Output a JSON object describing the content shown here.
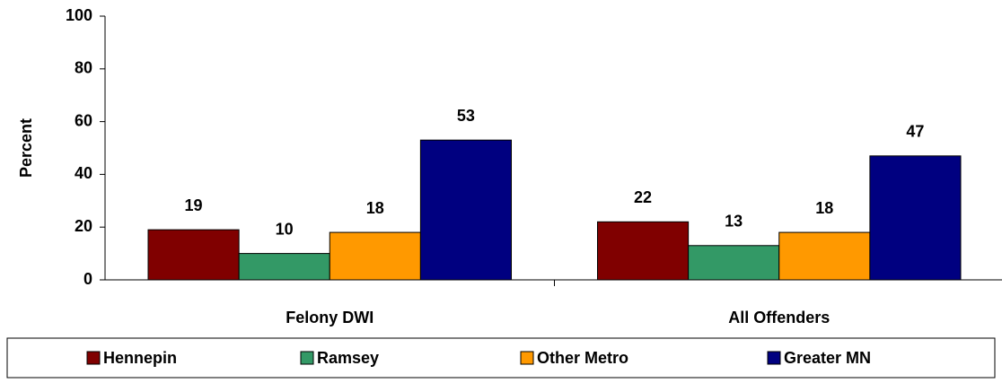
{
  "chart_data": {
    "type": "bar",
    "y_label": "Percent",
    "categories": [
      "Felony DWI",
      "All Offenders"
    ],
    "series": [
      {
        "name": "Hennepin",
        "color": "#800000",
        "values": [
          19,
          22
        ]
      },
      {
        "name": "Ramsey",
        "color": "#339966",
        "values": [
          10,
          13
        ]
      },
      {
        "name": "Other Metro",
        "color": "#ff9900",
        "values": [
          18,
          18
        ]
      },
      {
        "name": "Greater MN",
        "color": "#000080",
        "values": [
          53,
          47
        ]
      }
    ],
    "ylim": [
      0,
      100
    ],
    "yticks": [
      0,
      20,
      40,
      60,
      80,
      100
    ],
    "legend": "bottom"
  }
}
